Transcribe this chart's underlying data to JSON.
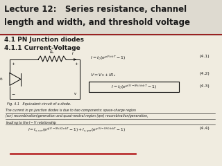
{
  "title_line1": "Lecture 12:   Series resistance, channel",
  "title_line2": "length and width, and threshold voltage",
  "subtitle_line1": "4.1 PN Junction diodes",
  "subtitle_line2": "4.1.1 Current-Voltage",
  "eq41_label": "(4.1)",
  "eq42_label": "(4.2)",
  "eq43_label": "(4.3)",
  "eq44_label": "(4.4)",
  "fig_caption": "Fig. 4.1   Equivalent circuit of a diode.",
  "bg_color": "#f0ece0",
  "text_color": "#1a1a1a",
  "header_separator_color": "#992222",
  "red_line_color": "#bb3333",
  "title_bg_color": "#dedad0"
}
